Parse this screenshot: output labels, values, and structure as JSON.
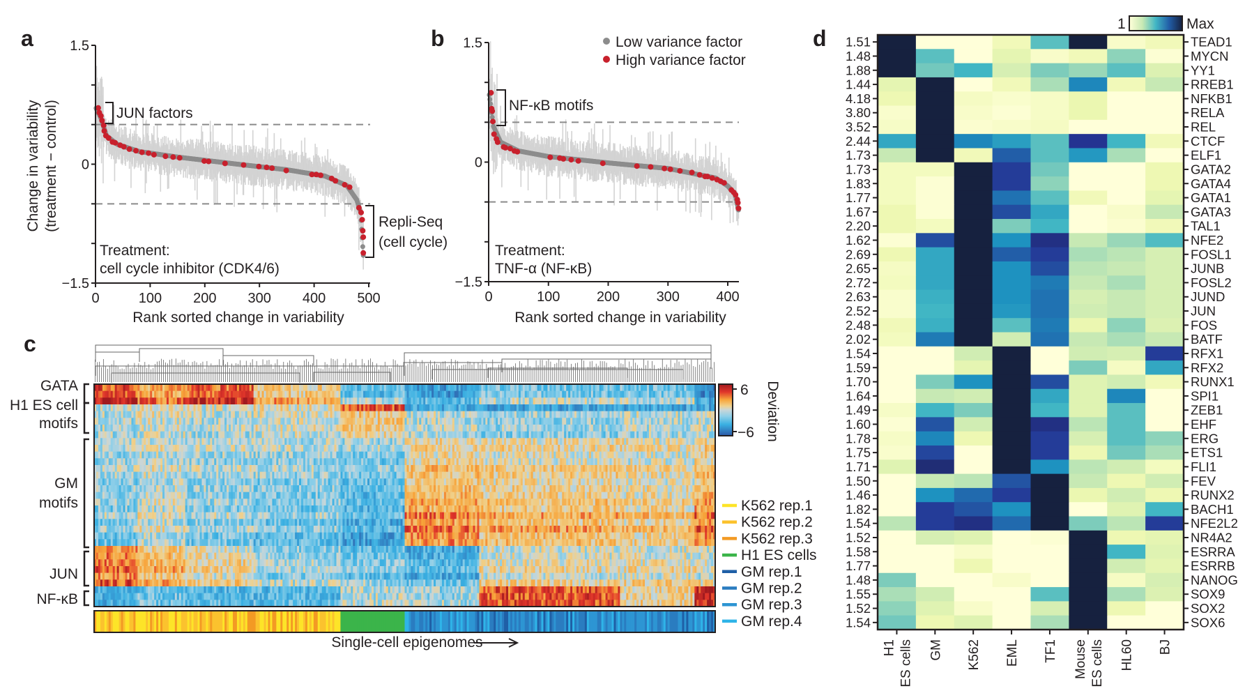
{
  "panel_labels": {
    "a": "a",
    "b": "b",
    "c": "c",
    "d": "d"
  },
  "legend_ab": {
    "low": {
      "label": "Low variance factor",
      "color": "#8c8c8c"
    },
    "high": {
      "label": "High variance factor",
      "color": "#c8202c"
    }
  },
  "chart_data": [
    {
      "panel": "a",
      "type": "scatter",
      "xlabel": "Rank sorted change in variability",
      "ylabel": [
        "Change in variability",
        "(treatment − control)"
      ],
      "xlim": [
        0,
        500
      ],
      "ylim": [
        -1.5,
        1.5
      ],
      "xticks": [
        "0",
        "100",
        "200",
        "300",
        "400",
        "500"
      ],
      "xtick_values": [
        0,
        100,
        200,
        300,
        400,
        500
      ],
      "yticks": [
        "1.5",
        "0",
        "−1.5"
      ],
      "ytick_values": [
        1.5,
        0,
        -1.5
      ],
      "thresholds": [
        0.5,
        -0.5
      ],
      "n_factors": 490,
      "low_variance_curve": [
        [
          0,
          0.72
        ],
        [
          10,
          0.58
        ],
        [
          20,
          0.36
        ],
        [
          40,
          0.25
        ],
        [
          80,
          0.16
        ],
        [
          150,
          0.09
        ],
        [
          260,
          0.0
        ],
        [
          350,
          -0.07
        ],
        [
          420,
          -0.15
        ],
        [
          460,
          -0.27
        ],
        [
          478,
          -0.45
        ],
        [
          485,
          -0.6
        ],
        [
          490,
          -1.15
        ]
      ],
      "high_variance_points": [
        [
          5,
          0.71
        ],
        [
          7,
          0.65
        ],
        [
          10,
          0.61
        ],
        [
          12,
          0.55
        ],
        [
          15,
          0.49
        ],
        [
          16,
          0.42
        ],
        [
          19,
          0.36
        ],
        [
          24,
          0.33
        ],
        [
          31,
          0.28
        ],
        [
          36,
          0.27
        ],
        [
          45,
          0.24
        ],
        [
          52,
          0.22
        ],
        [
          62,
          0.19
        ],
        [
          74,
          0.17
        ],
        [
          85,
          0.15
        ],
        [
          97,
          0.14
        ],
        [
          107,
          0.12
        ],
        [
          128,
          0.1
        ],
        [
          142,
          0.09
        ],
        [
          154,
          0.08
        ],
        [
          199,
          0.04
        ],
        [
          207,
          0.035
        ],
        [
          237,
          0.01
        ],
        [
          271,
          -0.01
        ],
        [
          299,
          -0.03
        ],
        [
          313,
          -0.04
        ],
        [
          323,
          -0.05
        ],
        [
          349,
          -0.08
        ],
        [
          396,
          -0.13
        ],
        [
          404,
          -0.13
        ],
        [
          412,
          -0.14
        ],
        [
          432,
          -0.18
        ],
        [
          439,
          -0.21
        ],
        [
          456,
          -0.26
        ],
        [
          465,
          -0.29
        ],
        [
          482,
          -0.55
        ],
        [
          486,
          -0.61
        ],
        [
          488,
          -0.7
        ],
        [
          489,
          -0.84
        ],
        [
          490,
          -0.92
        ],
        [
          490,
          -1.12
        ]
      ],
      "annotations": {
        "top_group": "JUN factors",
        "bottom_group": [
          "Repli-Seq",
          "(cell cycle)"
        ],
        "treatment": [
          "Treatment:",
          "cell cycle inhibitor (CDK4/6)"
        ]
      }
    },
    {
      "panel": "b",
      "type": "scatter",
      "xlabel": "Rank sorted change in variability",
      "xlim": [
        0,
        420
      ],
      "ylim": [
        -1.5,
        1.5
      ],
      "xticks": [
        "0",
        "100",
        "200",
        "300",
        "400"
      ],
      "xtick_values": [
        0,
        100,
        200,
        300,
        400
      ],
      "yticks": [
        "1.5",
        "0",
        "−1.5"
      ],
      "ytick_values": [
        1.5,
        0,
        -1.5
      ],
      "thresholds": [
        0.5,
        -0.5
      ],
      "n_factors": 418,
      "low_variance_curve": [
        [
          0,
          0.9
        ],
        [
          8,
          0.45
        ],
        [
          20,
          0.25
        ],
        [
          50,
          0.14
        ],
        [
          100,
          0.07
        ],
        [
          200,
          -0.01
        ],
        [
          300,
          -0.08
        ],
        [
          380,
          -0.2
        ],
        [
          400,
          -0.3
        ],
        [
          412,
          -0.4
        ],
        [
          418,
          -0.6
        ]
      ],
      "high_variance_points": [
        [
          4,
          0.87
        ],
        [
          5,
          0.67
        ],
        [
          6,
          0.64
        ],
        [
          7,
          0.51
        ],
        [
          9,
          0.35
        ],
        [
          13,
          0.29
        ],
        [
          15,
          0.25
        ],
        [
          25,
          0.19
        ],
        [
          28,
          0.18
        ],
        [
          36,
          0.17
        ],
        [
          43,
          0.14
        ],
        [
          48,
          0.13
        ],
        [
          103,
          0.06
        ],
        [
          119,
          0.05
        ],
        [
          125,
          0.04
        ],
        [
          138,
          0.03
        ],
        [
          150,
          0.015
        ],
        [
          191,
          -0.015
        ],
        [
          248,
          -0.05
        ],
        [
          271,
          -0.06
        ],
        [
          294,
          -0.08
        ],
        [
          304,
          -0.09
        ],
        [
          320,
          -0.11
        ],
        [
          340,
          -0.13
        ],
        [
          353,
          -0.16
        ],
        [
          362,
          -0.18
        ],
        [
          366,
          -0.18
        ],
        [
          374,
          -0.2
        ],
        [
          382,
          -0.22
        ],
        [
          388,
          -0.24
        ],
        [
          394,
          -0.26
        ],
        [
          406,
          -0.35
        ],
        [
          410,
          -0.38
        ],
        [
          413,
          -0.41
        ],
        [
          416,
          -0.47
        ],
        [
          417,
          -0.51
        ],
        [
          418,
          -0.58
        ]
      ],
      "annotations": {
        "top_group": "NF-κB motifs",
        "treatment": [
          "Treatment:",
          "TNF-α (NF-κB)"
        ]
      }
    },
    {
      "panel": "c",
      "type": "heatmap",
      "xlabel": "Single-cell epigenomes",
      "colorbar": {
        "title": "Deviation",
        "max_label": "6",
        "min_label": "−6",
        "range": [
          -6,
          6
        ]
      },
      "row_groups": [
        {
          "label": [
            "GATA"
          ],
          "rows": 3
        },
        {
          "label": [
            "H1 ES cell",
            "motifs"
          ],
          "rows": 5
        },
        {
          "label": [
            "GM",
            "motifs"
          ],
          "rows": 16
        },
        {
          "label": [
            "JUN"
          ],
          "rows": 6
        },
        {
          "label": [
            "NF-κB"
          ],
          "rows": 3
        }
      ],
      "column_segments": [
        {
          "cell_type": "K562",
          "share": 0.07,
          "means": [
            5,
            -0.5,
            -1.0,
            3.5,
            -3
          ]
        },
        {
          "cell_type": "K562",
          "share": 0.075,
          "means": [
            3,
            0.3,
            0,
            2,
            -2
          ]
        },
        {
          "cell_type": "K562",
          "share": 0.11,
          "means": [
            4.5,
            -0.3,
            -0.8,
            1,
            -2.5
          ]
        },
        {
          "cell_type": "K562",
          "share": 0.14,
          "means": [
            2,
            0.3,
            -1.2,
            -0.8,
            -2.5
          ]
        },
        {
          "cell_type": "H1 ES cells",
          "share": 0.105,
          "means": [
            -1.5,
            1.5,
            -2,
            -1.5,
            -0.5
          ]
        },
        {
          "cell_type": "GM",
          "share": 0.12,
          "means": [
            -3,
            -0.3,
            2.2,
            -2.5,
            -1
          ]
        },
        {
          "cell_type": "GM",
          "share": 0.225,
          "means": [
            -1,
            -0.8,
            1.5,
            0.5,
            4
          ]
        },
        {
          "cell_type": "GM",
          "share": 0.12,
          "means": [
            -1,
            -0.3,
            1,
            0.6,
            1
          ]
        },
        {
          "cell_type": "GM",
          "share": 0.035,
          "means": [
            -4,
            0,
            2.5,
            0.3,
            5
          ]
        }
      ],
      "annotation_legend": [
        {
          "label": "K562 rep.1",
          "color": "#fde428"
        },
        {
          "label": "K562 rep.2",
          "color": "#fbc22e"
        },
        {
          "label": "K562 rep.3",
          "color": "#f39a24"
        },
        {
          "label": "H1 ES cells",
          "color": "#3bb44a"
        },
        {
          "label": "GM rep.1",
          "color": "#1f5fa6"
        },
        {
          "label": "GM rep.2",
          "color": "#2a7cc0"
        },
        {
          "label": "GM rep.3",
          "color": "#2d95d3"
        },
        {
          "label": "GM rep.4",
          "color": "#2fb4e8"
        }
      ]
    },
    {
      "panel": "d",
      "type": "heatmap",
      "colorbar": {
        "min_label": "1",
        "max_label": "Max"
      },
      "columns": [
        [
          "H1",
          "ES cells"
        ],
        [
          "GM"
        ],
        [
          "K562"
        ],
        [
          "EML"
        ],
        [
          "TF1"
        ],
        [
          "Mouse",
          "ES cells"
        ],
        [
          "HL60"
        ],
        [
          "BJ"
        ]
      ],
      "rows": [
        "TEAD1",
        "MYCN",
        "YY1",
        "RREB1",
        "NFKB1",
        "RELA",
        "REL",
        "CTCF",
        "ELF1",
        "GATA2",
        "GATA4",
        "GATA1",
        "GATA3",
        "TAL1",
        "NFE2",
        "FOSL1",
        "JUNB",
        "FOSL2",
        "JUND",
        "JUN",
        "FOS",
        "BATF",
        "RFX1",
        "RFX2",
        "RUNX1",
        "SPI1",
        "ZEB1",
        "EHF",
        "ERG",
        "ETS1",
        "FLI1",
        "FEV",
        "RUNX2",
        "BACH1",
        "NFE2L2",
        "NR4A2",
        "ESRRA",
        "ESRRB",
        "NANOG",
        "SOX9",
        "SOX2",
        "SOX6"
      ],
      "row_max": [
        "1.51",
        "1.48",
        "1.88",
        "1.44",
        "4.18",
        "3.80",
        "3.52",
        "2.44",
        "1.73",
        "1.73",
        "1.83",
        "1.77",
        "1.67",
        "2.20",
        "1.62",
        "2.69",
        "2.65",
        "2.72",
        "2.63",
        "2.52",
        "2.48",
        "2.02",
        "1.54",
        "1.59",
        "1.70",
        "1.64",
        "1.49",
        "1.60",
        "1.78",
        "1.75",
        "1.71",
        "1.50",
        "1.46",
        "1.82",
        "1.54",
        "1.52",
        "1.58",
        "1.77",
        "1.48",
        "1.55",
        "1.52",
        "1.54"
      ],
      "values_fraction_of_max": [
        [
          1,
          0,
          0,
          0.1,
          0.45,
          1,
          0.05,
          0.1
        ],
        [
          1,
          0.45,
          0,
          0.15,
          0.05,
          0.1,
          0.35,
          0.02
        ],
        [
          1,
          0.4,
          0.5,
          0.2,
          0.38,
          0.33,
          0.45,
          0.18
        ],
        [
          0.15,
          1,
          0,
          0.1,
          0.3,
          0.65,
          0.1,
          0.25
        ],
        [
          0.12,
          1,
          0.07,
          0.04,
          0.06,
          0.13,
          0,
          0
        ],
        [
          0.04,
          1,
          0.05,
          0.02,
          0.06,
          0.13,
          0,
          0
        ],
        [
          0.06,
          1,
          0.03,
          0.05,
          0.07,
          0,
          0,
          0
        ],
        [
          0.55,
          1,
          0.65,
          0.58,
          0.45,
          0.88,
          0.5,
          0.1
        ],
        [
          0.25,
          1,
          0.1,
          0.75,
          0.45,
          0.6,
          0.3,
          0
        ],
        [
          0.08,
          0.08,
          1,
          0.85,
          0.4,
          0,
          0,
          0.12
        ],
        [
          0.08,
          0.02,
          1,
          0.85,
          0.35,
          0,
          0,
          0.12
        ],
        [
          0.08,
          0.02,
          1,
          0.7,
          0.45,
          0.1,
          0,
          0.15
        ],
        [
          0.12,
          0.02,
          1,
          0.8,
          0.55,
          0,
          0.05,
          0.25
        ],
        [
          0.12,
          0.08,
          1,
          0.38,
          0.5,
          0,
          0.03,
          0.1
        ],
        [
          0.02,
          0.8,
          1,
          0.62,
          0.9,
          0.25,
          0.33,
          0.47
        ],
        [
          0.12,
          0.55,
          1,
          0.75,
          0.85,
          0.3,
          0.27,
          0.2
        ],
        [
          0.07,
          0.55,
          1,
          0.62,
          0.8,
          0.27,
          0.25,
          0.2
        ],
        [
          0.08,
          0.55,
          1,
          0.62,
          0.68,
          0.25,
          0.3,
          0.2
        ],
        [
          0.04,
          0.52,
          1,
          0.62,
          0.7,
          0.2,
          0.25,
          0.2
        ],
        [
          0.04,
          0.5,
          1,
          0.6,
          0.7,
          0.22,
          0.25,
          0.2
        ],
        [
          0.1,
          0.52,
          1,
          0.45,
          0.68,
          0.13,
          0.35,
          0.18
        ],
        [
          0.08,
          0.68,
          1,
          0.22,
          0.7,
          0.25,
          0.3,
          0.25
        ],
        [
          0,
          0,
          0.22,
          1,
          0,
          0.22,
          0.2,
          0.85
        ],
        [
          0,
          0,
          0.15,
          1,
          0,
          0.38,
          0.07,
          0.55
        ],
        [
          0,
          0.38,
          0.62,
          1,
          0.8,
          0.17,
          0.22,
          0.1
        ],
        [
          0,
          0.25,
          0.22,
          1,
          0.55,
          0.17,
          0.65,
          0
        ],
        [
          0.06,
          0.5,
          0.38,
          1,
          0.5,
          0.17,
          0.45,
          0
        ],
        [
          0.02,
          0.78,
          0.22,
          1,
          0.9,
          0.27,
          0.45,
          0
        ],
        [
          0.06,
          0.65,
          0.12,
          1,
          0.85,
          0.2,
          0.45,
          0.35
        ],
        [
          0.04,
          0.82,
          0,
          1,
          0.85,
          0.12,
          0.4,
          0.3
        ],
        [
          0.17,
          0.92,
          0,
          1,
          0.62,
          0.27,
          0.22,
          0.08
        ],
        [
          0,
          0.25,
          0.27,
          0.78,
          1,
          0.25,
          0.12,
          0.22
        ],
        [
          0,
          0.62,
          0.72,
          0.85,
          1,
          0.13,
          0.22,
          0.12
        ],
        [
          0,
          0.85,
          0.78,
          0.62,
          1,
          0,
          0.17,
          0.5
        ],
        [
          0.27,
          0.85,
          0.9,
          0.72,
          1,
          0.38,
          0.27,
          0.85
        ],
        [
          0,
          0.2,
          0.17,
          0,
          0.02,
          1,
          0.12,
          0.15
        ],
        [
          0,
          0,
          0.05,
          0,
          0,
          1,
          0.5,
          0.17
        ],
        [
          0,
          0,
          0.12,
          0,
          0,
          1,
          0.22,
          0.15
        ],
        [
          0.38,
          0,
          0,
          0.05,
          0,
          1,
          0.07,
          0.2
        ],
        [
          0.3,
          0.22,
          0,
          0,
          0.45,
          1,
          0.3,
          0.18
        ],
        [
          0.35,
          0.17,
          0.05,
          0,
          0.2,
          1,
          0.12,
          0
        ],
        [
          0.4,
          0.12,
          0.17,
          0,
          0.3,
          1,
          0,
          0
        ]
      ]
    }
  ]
}
